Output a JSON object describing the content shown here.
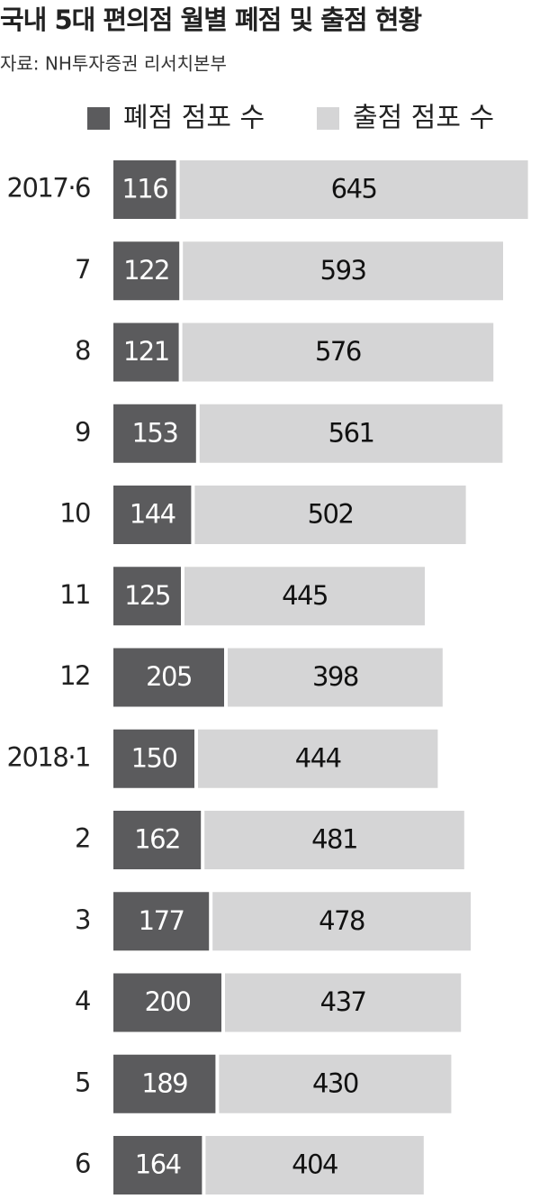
{
  "chart_data": {
    "type": "stacked-bar-horizontal",
    "title": "국내 5대 편의점 월별 폐점 및 출점 현황",
    "subtitle": "자료: NH투자증권 리서치본부",
    "categories": [
      "2017·6",
      "7",
      "8",
      "9",
      "10",
      "11",
      "12",
      "2018·1",
      "2",
      "3",
      "4",
      "5",
      "6"
    ],
    "series": [
      {
        "name": "폐점 점포 수",
        "color": "#5b5b5d",
        "values": [
          116,
          122,
          121,
          153,
          144,
          125,
          205,
          150,
          162,
          177,
          200,
          189,
          164
        ]
      },
      {
        "name": "출점 점포 수",
        "color": "#d5d5d6",
        "values": [
          645,
          593,
          576,
          561,
          502,
          445,
          398,
          444,
          481,
          478,
          437,
          430,
          404
        ]
      }
    ]
  }
}
